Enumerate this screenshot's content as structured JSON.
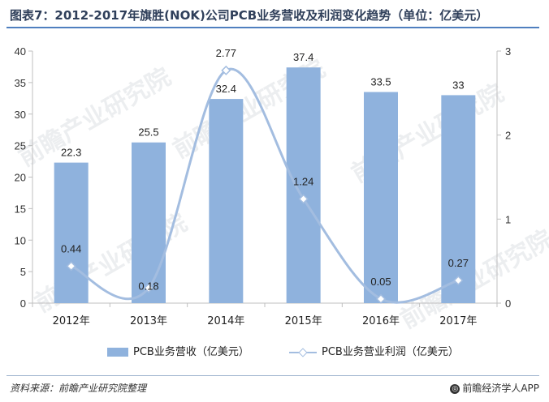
{
  "title": "图表7：2012-2017年旗胜(NOK)公司PCB业务营收及利润变化趋势（单位：亿美元）",
  "source": "资料来源：前瞻产业研究院整理",
  "brand": "前瞻经济学人APP",
  "watermark": "前瞻产业研究院",
  "chart_data": {
    "type": "bar+line",
    "categories": [
      "2012年",
      "2013年",
      "2014年",
      "2015年",
      "2016年",
      "2017年"
    ],
    "series": [
      {
        "name": "PCB业务营收（亿美元）",
        "type": "bar",
        "axis": "left",
        "values": [
          22.3,
          25.5,
          32.4,
          37.4,
          33.5,
          33
        ],
        "labels": [
          "22.3",
          "25.5",
          "32.4",
          "37.4",
          "33.5",
          "33"
        ],
        "color": "#8fb2dd"
      },
      {
        "name": "PCB业务营业利润（亿美元）",
        "type": "line",
        "axis": "right",
        "values": [
          0.44,
          0.18,
          2.77,
          1.24,
          0.05,
          0.27
        ],
        "labels": [
          "0.44",
          "0.18",
          "2.77",
          "1.24",
          "0.05",
          "0.27"
        ],
        "color": "#a3bde0"
      }
    ],
    "ylim_left": [
      0,
      40
    ],
    "yticks_left": [
      0,
      5,
      10,
      15,
      20,
      25,
      30,
      35,
      40
    ],
    "ylim_right": [
      0,
      3
    ],
    "yticks_right": [
      0,
      1,
      2,
      3
    ],
    "grid": false,
    "legend": "bottom"
  }
}
